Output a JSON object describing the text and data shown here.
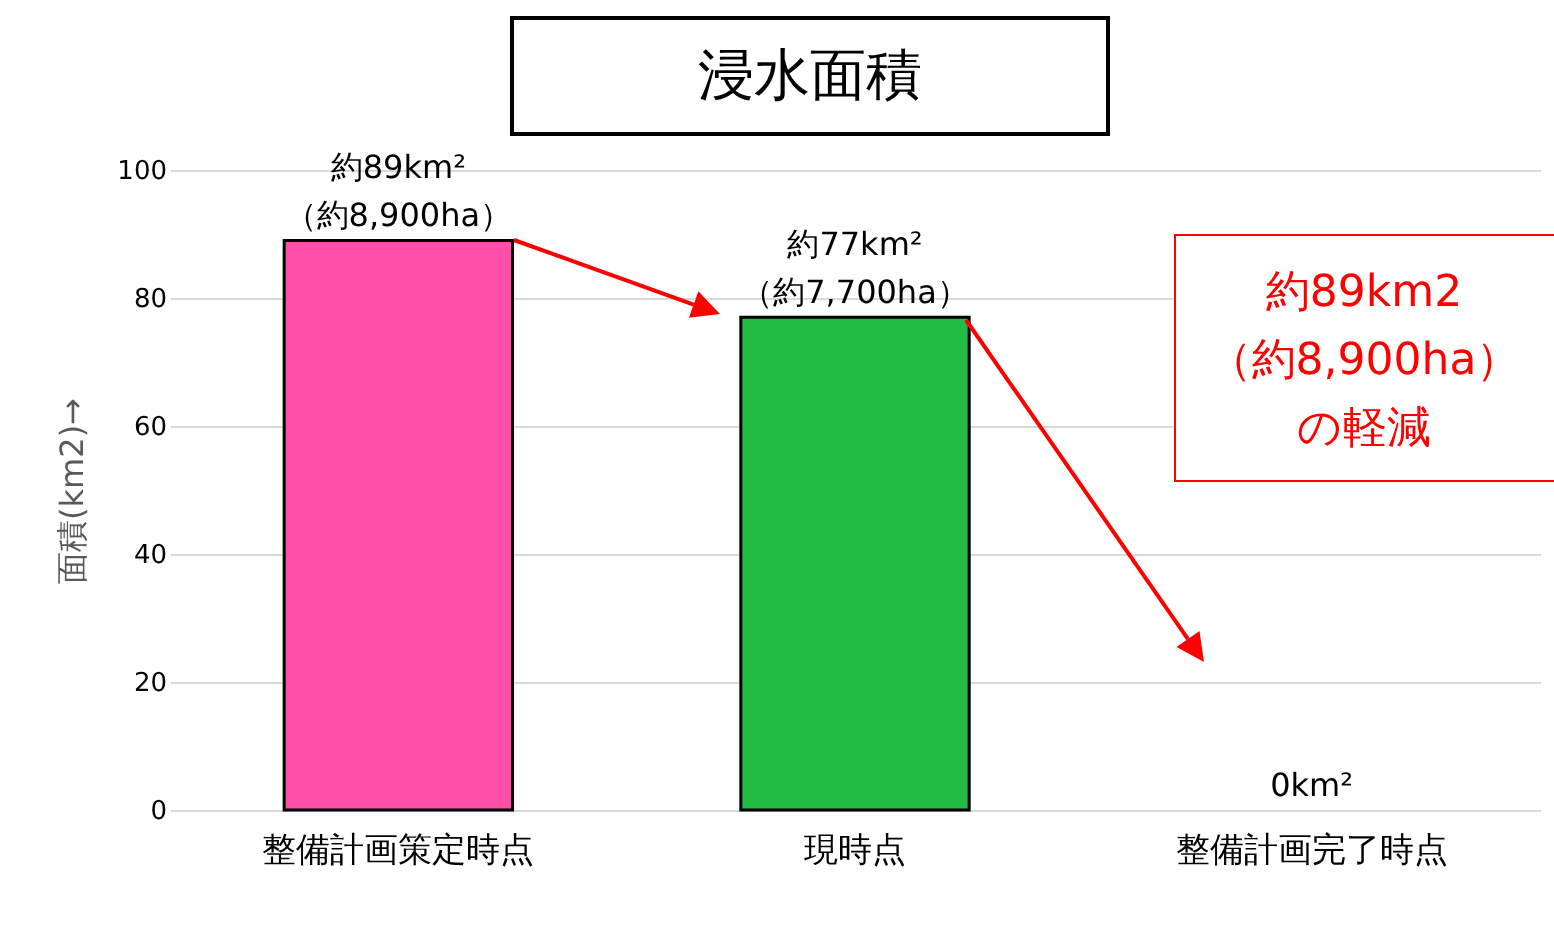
{
  "chart_data": {
    "type": "bar",
    "title": "浸水面積",
    "ylabel": "面積(km2)→",
    "categories": [
      "整備計画策定時点",
      "現時点",
      "整備計画完了時点"
    ],
    "values": [
      89,
      77,
      0
    ],
    "colors": [
      "#ff4fa8",
      "#22bb44",
      null
    ],
    "value_labels": [
      "約89km²\n（約8,900ha）",
      "約77km²\n（約7,700ha）",
      "0km²"
    ],
    "annotations": [
      "約89km2",
      "（約8,900ha）",
      "の軽減"
    ],
    "ylim": [
      0,
      100
    ],
    "yticks": [
      0,
      20,
      40,
      60,
      80,
      100
    ],
    "grid": "y"
  }
}
